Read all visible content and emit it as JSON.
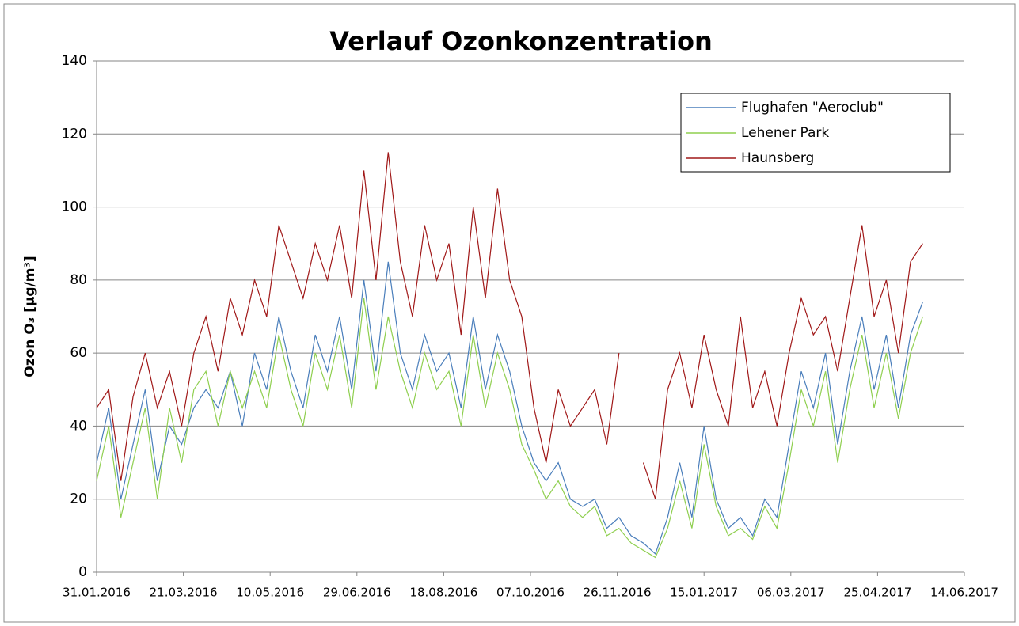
{
  "chart_data": {
    "type": "line",
    "title": "Verlauf Ozonkonzentration",
    "y_label": "Ozon O₃ [µg/m³]",
    "x": [
      "31.01.2016",
      "07.02.2016",
      "14.02.2016",
      "21.02.2016",
      "28.02.2016",
      "06.03.2016",
      "13.03.2016",
      "20.03.2016",
      "27.03.2016",
      "03.04.2016",
      "10.04.2016",
      "17.04.2016",
      "24.04.2016",
      "01.05.2016",
      "08.05.2016",
      "15.05.2016",
      "22.05.2016",
      "29.05.2016",
      "05.06.2016",
      "12.06.2016",
      "19.06.2016",
      "26.06.2016",
      "03.07.2016",
      "10.07.2016",
      "17.07.2016",
      "24.07.2016",
      "31.07.2016",
      "07.08.2016",
      "14.08.2016",
      "21.08.2016",
      "28.08.2016",
      "04.09.2016",
      "11.09.2016",
      "18.09.2016",
      "25.09.2016",
      "02.10.2016",
      "09.10.2016",
      "16.10.2016",
      "23.10.2016",
      "30.10.2016",
      "06.11.2016",
      "13.11.2016",
      "20.11.2016",
      "27.11.2016",
      "04.12.2016",
      "11.12.2016",
      "18.12.2016",
      "25.12.2016",
      "01.01.2017",
      "08.01.2017",
      "15.01.2017",
      "22.01.2017",
      "29.01.2017",
      "05.02.2017",
      "12.02.2017",
      "19.02.2017",
      "26.02.2017",
      "05.03.2017",
      "12.03.2017",
      "19.03.2017",
      "26.03.2017",
      "02.04.2017",
      "09.04.2017",
      "16.04.2017",
      "23.04.2017",
      "30.04.2017",
      "07.05.2017",
      "14.05.2017",
      "21.05.2017"
    ],
    "series": [
      {
        "name": "Flughafen \"Aeroclub\"",
        "color": "#4a7ebb",
        "values": [
          30,
          45,
          20,
          35,
          50,
          25,
          40,
          35,
          45,
          50,
          45,
          55,
          40,
          60,
          50,
          70,
          55,
          45,
          65,
          55,
          70,
          50,
          80,
          55,
          85,
          60,
          50,
          65,
          55,
          60,
          45,
          70,
          50,
          65,
          55,
          40,
          30,
          25,
          30,
          20,
          18,
          20,
          12,
          15,
          10,
          8,
          5,
          15,
          30,
          15,
          40,
          20,
          12,
          15,
          10,
          20,
          15,
          35,
          55,
          45,
          60,
          35,
          55,
          70,
          50,
          65,
          45,
          65,
          74
        ]
      },
      {
        "name": "Lehener Park",
        "color": "#8fcf4f",
        "values": [
          25,
          40,
          15,
          30,
          45,
          20,
          45,
          30,
          50,
          55,
          40,
          55,
          45,
          55,
          45,
          65,
          50,
          40,
          60,
          50,
          65,
          45,
          75,
          50,
          70,
          55,
          45,
          60,
          50,
          55,
          40,
          65,
          45,
          60,
          50,
          35,
          28,
          20,
          25,
          18,
          15,
          18,
          10,
          12,
          8,
          6,
          4,
          12,
          25,
          12,
          35,
          18,
          10,
          12,
          9,
          18,
          12,
          30,
          50,
          40,
          55,
          30,
          50,
          65,
          45,
          60,
          42,
          60,
          70
        ]
      },
      {
        "name": "Haunsberg",
        "color": "#a01818",
        "values": [
          45,
          50,
          25,
          48,
          60,
          45,
          55,
          40,
          60,
          70,
          55,
          75,
          65,
          80,
          70,
          95,
          85,
          75,
          90,
          80,
          95,
          75,
          110,
          80,
          115,
          85,
          70,
          95,
          80,
          90,
          65,
          100,
          75,
          105,
          80,
          70,
          45,
          30,
          50,
          40,
          45,
          50,
          35,
          60,
          null,
          30,
          20,
          50,
          60,
          45,
          65,
          50,
          40,
          70,
          45,
          55,
          40,
          60,
          75,
          65,
          70,
          55,
          75,
          95,
          70,
          80,
          60,
          85,
          90
        ]
      }
    ],
    "xlim": [
      "31.01.2016",
      "14.06.2017"
    ],
    "xticks": [
      "31.01.2016",
      "21.03.2016",
      "10.05.2016",
      "29.06.2016",
      "18.08.2016",
      "07.10.2016",
      "26.11.2016",
      "15.01.2017",
      "06.03.2017",
      "25.04.2017",
      "14.06.2017"
    ],
    "ylim": [
      0,
      140
    ],
    "yticks": [
      0,
      20,
      40,
      60,
      80,
      100,
      120,
      140
    ],
    "grid": true,
    "legend": "upper right"
  }
}
